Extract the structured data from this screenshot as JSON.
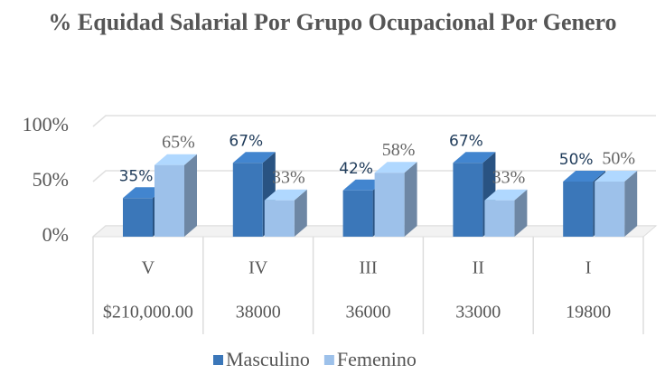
{
  "chart_data": {
    "type": "bar3d",
    "title": "% Equidad Salarial Por Grupo Ocupacional Por Genero",
    "categories": [
      "V",
      "IV",
      "III",
      "II",
      "I"
    ],
    "category_labels2": [
      "$210,000.00",
      "38000",
      "36000",
      "33000",
      "19800"
    ],
    "series": [
      {
        "name": "Masculino",
        "color": "#3b77b9",
        "values": [
          35,
          67,
          42,
          67,
          50
        ],
        "value_labels": [
          "35%",
          "67%",
          "42%",
          "67%",
          "50%"
        ]
      },
      {
        "name": "Femenino",
        "color": "#9dc1ea",
        "values": [
          65,
          33,
          58,
          33,
          50
        ],
        "value_labels": [
          "65%",
          "33%",
          "58%",
          "33%",
          "50%"
        ]
      }
    ],
    "ylim": [
      0,
      100
    ],
    "yticks": [
      {
        "value": 0,
        "label": "0%"
      },
      {
        "value": 50,
        "label": "50%"
      },
      {
        "value": 100,
        "label": "100%"
      }
    ],
    "grid": true,
    "legend": "bottom"
  }
}
